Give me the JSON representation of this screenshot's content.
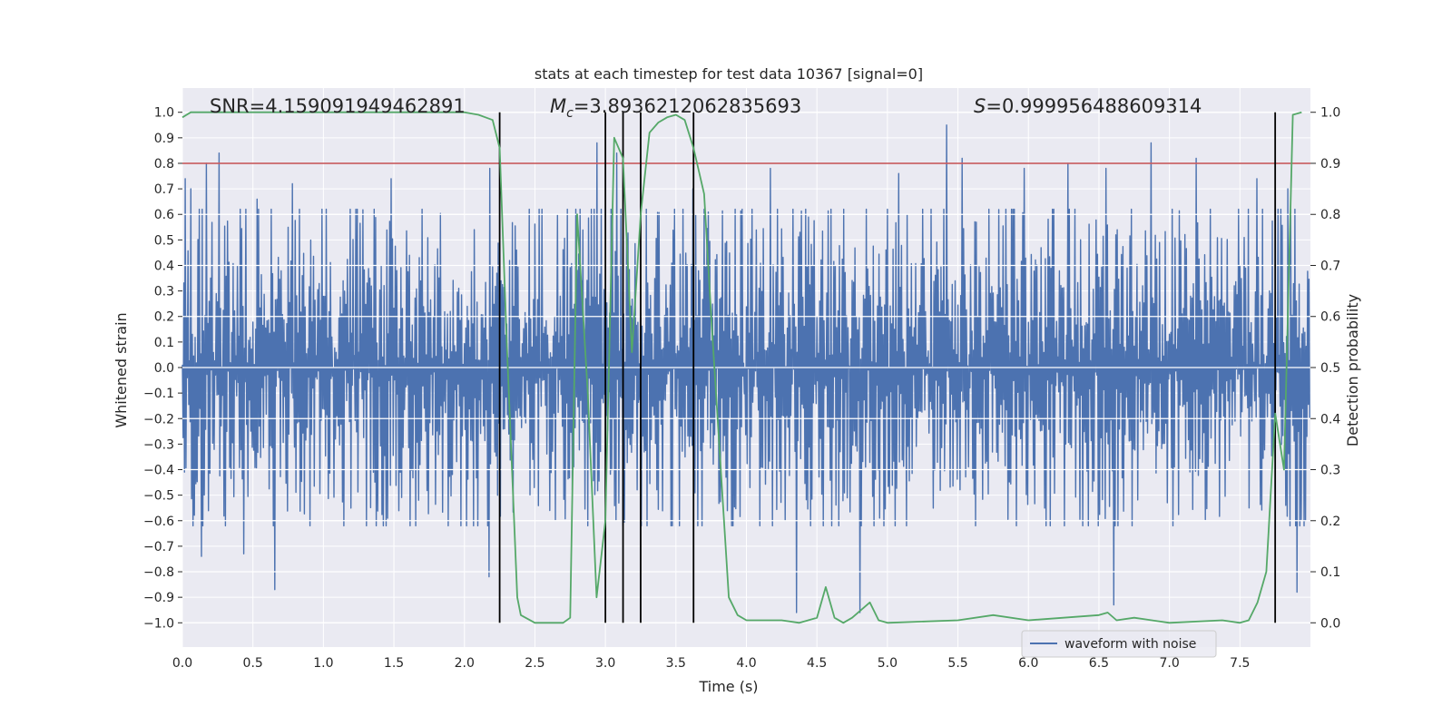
{
  "chart_data": {
    "type": "line",
    "title": "stats at each timestep for test data 10367 [signal=0]",
    "xlabel": "Time (s)",
    "ylabel_left": "Whitened strain",
    "ylabel_right": "Detection probability",
    "xlim": [
      0.0,
      8.0
    ],
    "ylim_left": [
      -1.095,
      1.095
    ],
    "ylim_right": [
      -0.0475,
      1.0475
    ],
    "grid": true,
    "x_ticks": [
      "0.0",
      "0.5",
      "1.0",
      "1.5",
      "2.0",
      "2.5",
      "3.0",
      "3.5",
      "4.0",
      "4.5",
      "5.0",
      "5.5",
      "6.0",
      "6.5",
      "7.0",
      "7.5"
    ],
    "x_tick_values": [
      0.0,
      0.5,
      1.0,
      1.5,
      2.0,
      2.5,
      3.0,
      3.5,
      4.0,
      4.5,
      5.0,
      5.5,
      6.0,
      6.5,
      7.0,
      7.5
    ],
    "y_left_ticks": [
      "1.0",
      "0.9",
      "0.8",
      "0.7",
      "0.6",
      "0.5",
      "0.4",
      "0.3",
      "0.2",
      "0.1",
      "0.0",
      "−0.1",
      "−0.2",
      "−0.3",
      "−0.4",
      "−0.5",
      "−0.6",
      "−0.7",
      "−0.8",
      "−0.9",
      "−1.0"
    ],
    "y_left_tick_values": [
      1.0,
      0.9,
      0.8,
      0.7,
      0.6,
      0.5,
      0.4,
      0.3,
      0.2,
      0.1,
      0.0,
      -0.1,
      -0.2,
      -0.3,
      -0.4,
      -0.5,
      -0.6,
      -0.7,
      -0.8,
      -0.9,
      -1.0
    ],
    "y_right_ticks": [
      "1.0",
      "0.9",
      "0.8",
      "0.7",
      "0.6",
      "0.5",
      "0.4",
      "0.3",
      "0.2",
      "0.1",
      "0.0"
    ],
    "y_right_tick_values": [
      1.0,
      0.9,
      0.8,
      0.7,
      0.6,
      0.5,
      0.4,
      0.3,
      0.2,
      0.1,
      0.0
    ],
    "annotations": {
      "snr": "SNR=4.159091949462891",
      "mc_symbol": "M",
      "mc_subscript": "c",
      "mc_value": "=3.8936212062835693",
      "s_symbol": "S",
      "s_value": "=0.999956488609314"
    },
    "threshold": {
      "value": 0.9,
      "axis": "right",
      "color": "#c44e52"
    },
    "vertical_lines": [
      2.25,
      3.0,
      3.125,
      3.25,
      3.625,
      7.75
    ],
    "vline_color": "#000000",
    "waveform": {
      "name": "waveform with noise",
      "color": "#4c72b0",
      "n_samples": 1600,
      "envelope": 0.42,
      "peak_times": [
        0.02,
        0.06,
        0.17,
        0.26,
        0.53,
        0.78,
        1.48,
        2.18,
        2.94,
        3.08,
        3.62,
        4.17,
        5.08,
        5.42,
        5.53,
        5.97,
        6.28,
        6.55,
        6.87,
        7.19,
        7.62,
        7.84
      ],
      "peak_values": [
        0.74,
        0.7,
        0.8,
        0.84,
        0.66,
        0.72,
        0.74,
        0.78,
        0.88,
        0.84,
        0.7,
        0.78,
        0.76,
        0.95,
        0.82,
        0.78,
        0.8,
        0.78,
        0.88,
        0.82,
        0.74,
        0.7
      ],
      "trough_times": [
        0.13,
        0.43,
        0.65,
        2.17,
        4.35,
        4.8,
        6.6,
        7.9
      ],
      "trough_values": [
        -0.74,
        -0.73,
        -0.87,
        -0.82,
        -0.96,
        -0.96,
        -0.93,
        -0.88
      ]
    },
    "probability": {
      "color": "#55a868",
      "x": [
        0.0,
        0.06,
        0.125,
        0.5,
        1.0,
        1.5,
        2.0,
        2.1,
        2.2,
        2.25,
        2.3,
        2.375,
        2.4,
        2.5,
        2.6,
        2.7,
        2.75,
        2.8,
        2.875,
        2.9375,
        3.0,
        3.0625,
        3.125,
        3.1875,
        3.25,
        3.3125,
        3.375,
        3.4375,
        3.5,
        3.5625,
        3.625,
        3.7,
        3.75,
        3.875,
        3.9375,
        4.0,
        4.125,
        4.25,
        4.375,
        4.5,
        4.5625,
        4.625,
        4.6875,
        4.75,
        4.875,
        4.9375,
        5.0,
        5.5,
        5.75,
        6.0,
        6.5,
        6.5625,
        6.625,
        6.75,
        7.0,
        7.375,
        7.5,
        7.5625,
        7.625,
        7.6875,
        7.75,
        7.8125,
        7.875,
        7.9375
      ],
      "y": [
        0.99,
        1.0,
        1.0,
        1.0,
        1.0,
        1.0,
        1.0,
        0.995,
        0.985,
        0.93,
        0.55,
        0.05,
        0.015,
        0.0,
        0.0,
        0.0,
        0.01,
        0.8,
        0.45,
        0.05,
        0.2,
        0.95,
        0.91,
        0.53,
        0.8,
        0.96,
        0.98,
        0.99,
        0.995,
        0.985,
        0.93,
        0.84,
        0.6,
        0.05,
        0.015,
        0.005,
        0.005,
        0.005,
        0.0,
        0.01,
        0.07,
        0.01,
        0.0,
        0.01,
        0.04,
        0.005,
        0.0,
        0.005,
        0.015,
        0.005,
        0.015,
        0.02,
        0.005,
        0.01,
        0.0,
        0.005,
        0.0,
        0.005,
        0.04,
        0.1,
        0.41,
        0.3,
        0.995,
        1.0
      ]
    },
    "legend": {
      "entries": [
        "waveform with noise"
      ],
      "location": "lower right"
    }
  },
  "style": {
    "axes_bg": "#eaeaf2",
    "grid_color": "#ffffff",
    "text_color": "#262626"
  }
}
